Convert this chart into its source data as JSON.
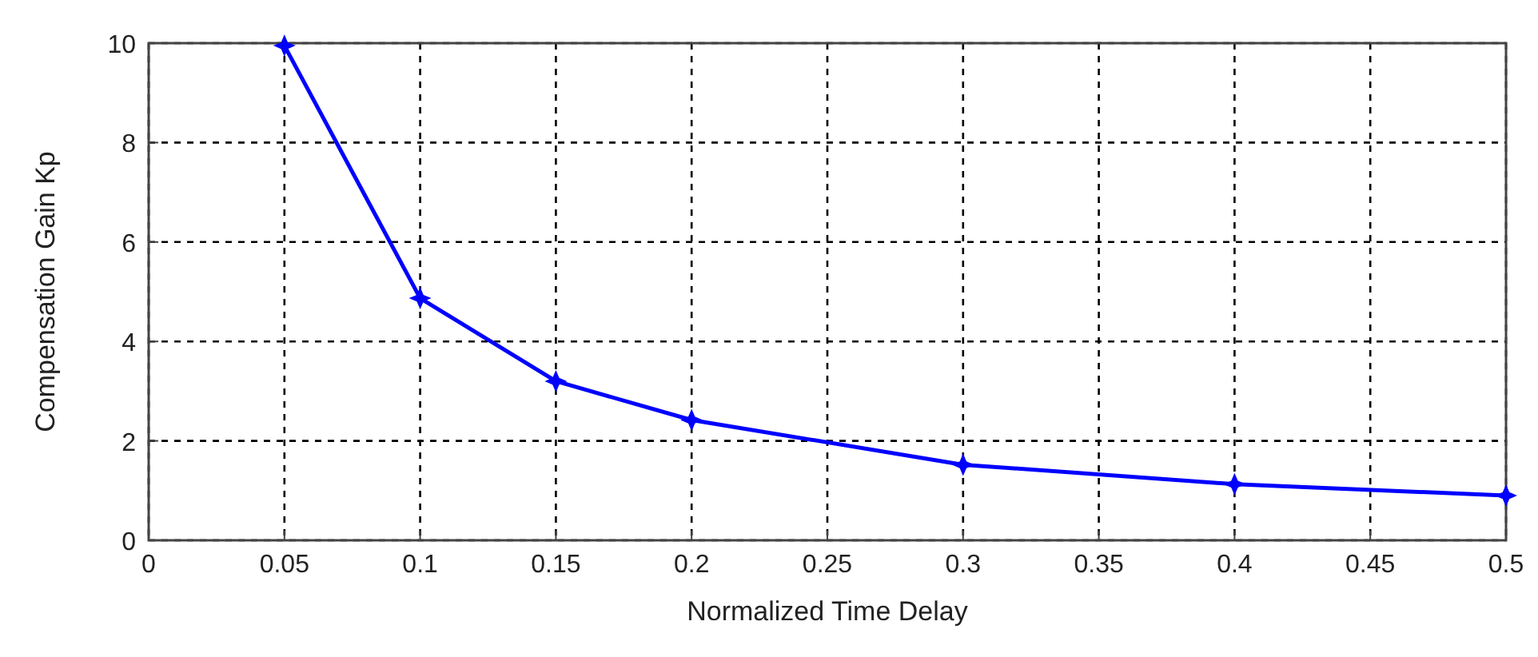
{
  "chart_data": {
    "type": "line",
    "xlabel": "Normalized Time Delay",
    "ylabel": "Compensation Gain Kp",
    "x": [
      0.05,
      0.1,
      0.15,
      0.2,
      0.3,
      0.4,
      0.5
    ],
    "series": [
      {
        "color": "#0000ff",
        "values": [
          9.95,
          4.87,
          3.2,
          2.42,
          1.52,
          1.13,
          0.9
        ]
      }
    ],
    "xlim": [
      0,
      0.5
    ],
    "xticks": [
      0,
      0.05,
      0.1,
      0.15,
      0.2,
      0.25,
      0.3,
      0.35,
      0.4,
      0.45,
      0.5
    ],
    "ylim": [
      0,
      10
    ],
    "yticks": [
      0,
      2,
      4,
      6,
      8,
      10
    ],
    "grid": true,
    "marker": "star",
    "line_style": "solid"
  }
}
